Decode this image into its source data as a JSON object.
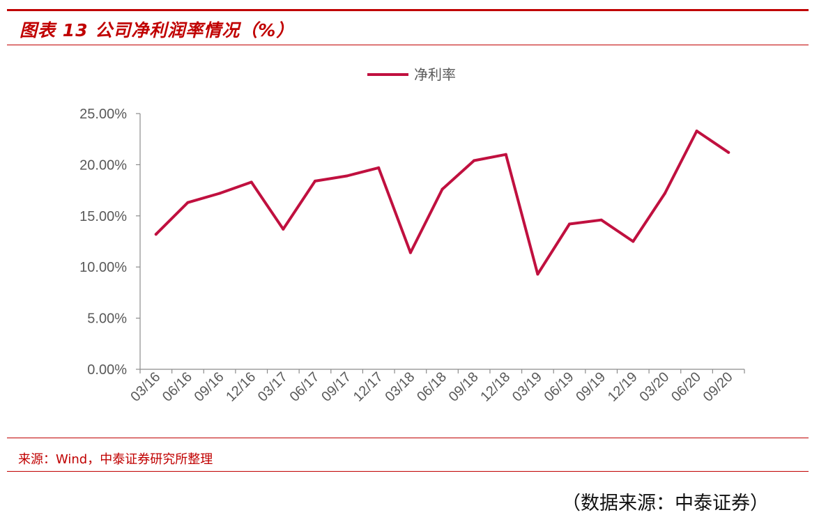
{
  "figure": {
    "title": "图表 13 公司净利润率情况（%）",
    "source": "来源：Wind，中泰证券研究所整理",
    "footer": "（数据来源：中泰证券）"
  },
  "colors": {
    "accent": "#c00000",
    "series": "#c0103f",
    "axis": "#8c8c8c",
    "text": "#595959"
  },
  "chart_data": {
    "type": "line",
    "categories": [
      "03/16",
      "06/16",
      "09/16",
      "12/16",
      "03/17",
      "06/17",
      "09/17",
      "12/17",
      "03/18",
      "06/18",
      "09/18",
      "12/18",
      "03/19",
      "06/19",
      "09/19",
      "12/19",
      "03/20",
      "06/20",
      "09/20"
    ],
    "series": [
      {
        "name": "净利率",
        "values": [
          13.2,
          16.3,
          17.2,
          18.3,
          13.7,
          18.4,
          18.9,
          19.7,
          11.4,
          17.6,
          20.4,
          21.0,
          9.3,
          14.2,
          14.6,
          12.5,
          17.2,
          23.3,
          21.2
        ]
      }
    ],
    "y_ticks": [
      "0.00%",
      "5.00%",
      "10.00%",
      "15.00%",
      "20.00%",
      "25.00%"
    ],
    "ylim": [
      0,
      25
    ],
    "grid": false,
    "legend_position": "top-center"
  }
}
